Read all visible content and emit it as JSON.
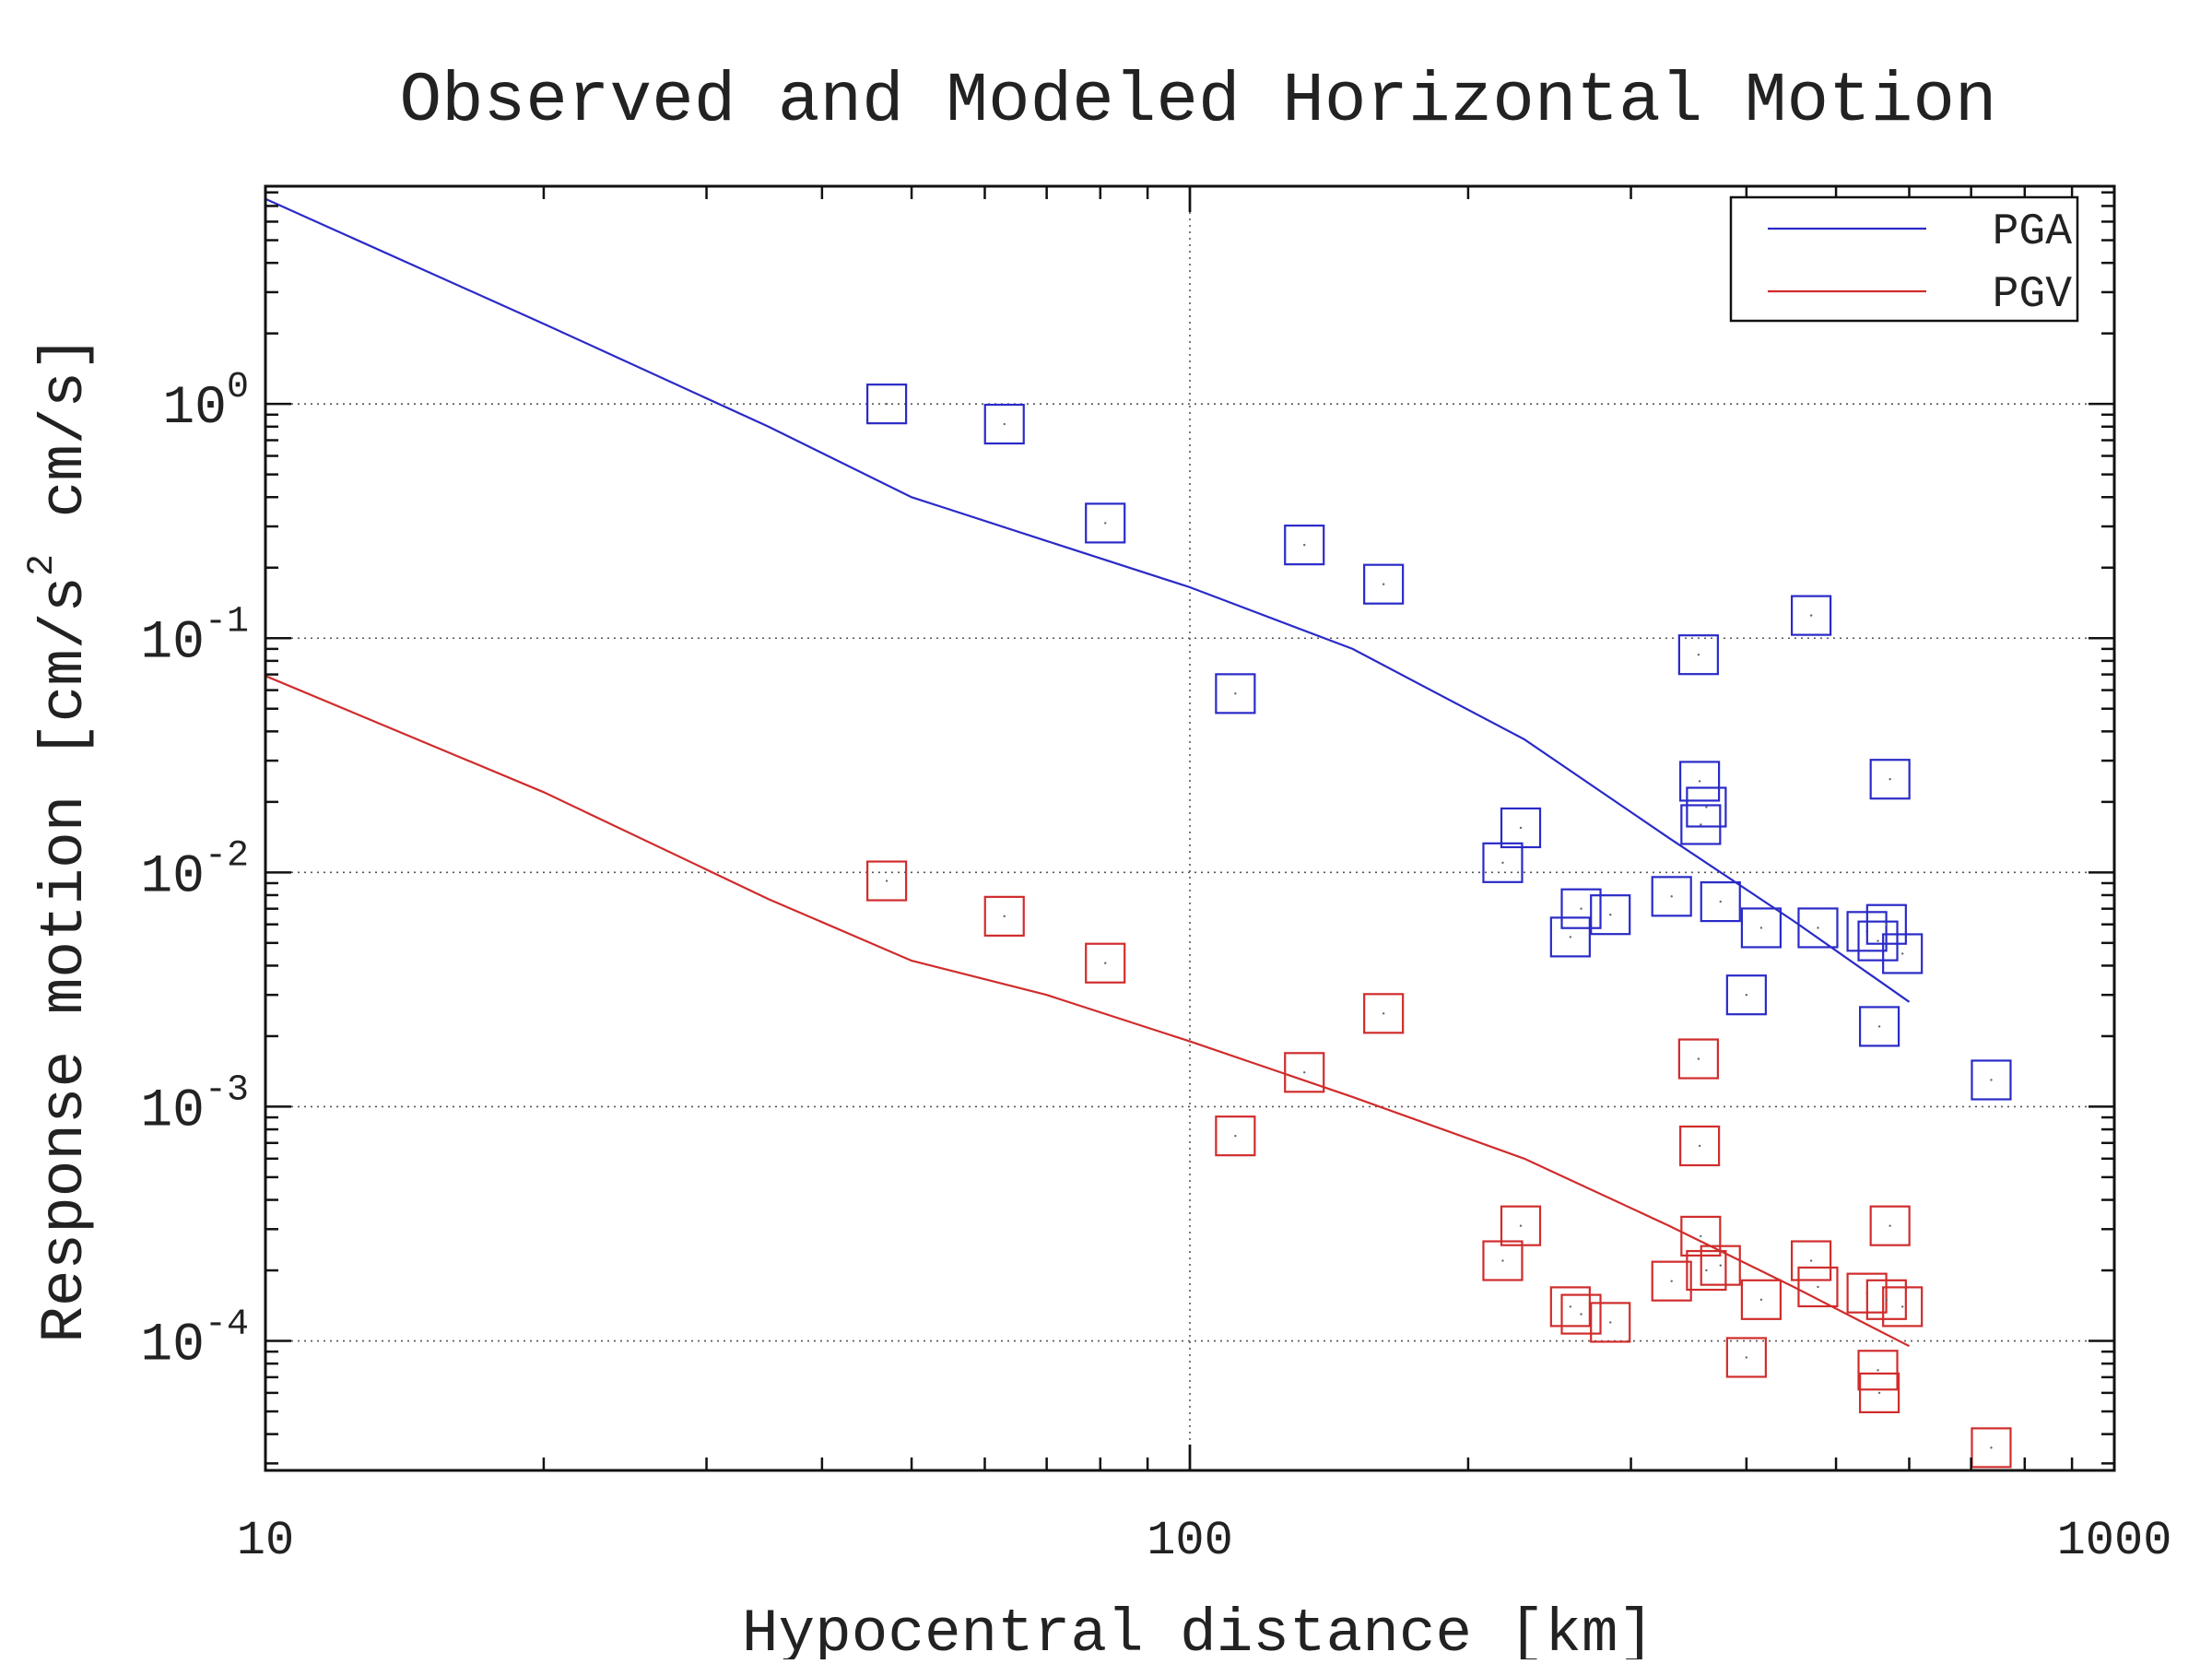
{
  "chart_data": {
    "type": "scatter",
    "title": "Observed and Modeled Horizontal Motion",
    "xlabel": "Hypocentral distance [km]",
    "ylabel": {
      "prefix": "Response motion [cm/s",
      "sup": "2",
      "suffix": " cm/s]"
    },
    "xscale": "log",
    "yscale": "log",
    "xlim": [
      10,
      1000
    ],
    "ylim": [
      2.8e-05,
      8.5
    ],
    "x_ticks": [
      {
        "value": 10,
        "label": "10"
      },
      {
        "value": 100,
        "label": "100"
      },
      {
        "value": 1000,
        "label": "1000"
      }
    ],
    "y_ticks": [
      {
        "value": 1,
        "base": "10",
        "exp": "0"
      },
      {
        "value": 0.1,
        "base": "10",
        "exp": "-1"
      },
      {
        "value": 0.01,
        "base": "10",
        "exp": "-2"
      },
      {
        "value": 0.001,
        "base": "10",
        "exp": "-3"
      },
      {
        "value": 0.0001,
        "base": "10",
        "exp": "-4"
      }
    ],
    "grid": true,
    "legend_position": "top-right",
    "series": [
      {
        "name": "PGA",
        "color": "#2a2ac8",
        "model_curve": {
          "x": [
            10,
            20,
            35,
            50,
            70,
            100,
            150,
            230,
            330,
            450,
            600
          ],
          "y": [
            7.5,
            2.2,
            0.8,
            0.4,
            0.26,
            0.165,
            0.09,
            0.037,
            0.014,
            0.0062,
            0.0028
          ]
        },
        "observed": {
          "x": [
            47,
            63,
            81,
            112,
            133,
            162,
            218,
            228,
            258,
            265,
            285,
            332,
            355,
            356,
            357,
            362,
            375,
            400,
            415,
            470,
            478,
            540,
            555,
            557,
            567,
            572,
            590,
            736
          ],
          "y": [
            1.0,
            0.82,
            0.31,
            0.058,
            0.25,
            0.17,
            0.011,
            0.0155,
            0.0053,
            0.007,
            0.0066,
            0.0079,
            0.085,
            0.0245,
            0.016,
            0.019,
            0.0075,
            0.003,
            0.0058,
            0.125,
            0.0058,
            0.0056,
            0.0051,
            0.0022,
            0.006,
            0.025,
            0.0045,
            0.0013
          ]
        }
      },
      {
        "name": "PGV",
        "color": "#d02c2c",
        "model_curve": {
          "x": [
            10,
            20,
            35,
            50,
            70,
            100,
            150,
            230,
            330,
            450,
            600
          ],
          "y": [
            0.069,
            0.022,
            0.0077,
            0.0042,
            0.003,
            0.0019,
            0.0011,
            0.0006,
            0.00031,
            0.00017,
            9.5e-05
          ]
        },
        "observed": {
          "x": [
            47,
            63,
            81,
            112,
            133,
            162,
            218,
            228,
            258,
            265,
            285,
            332,
            355,
            356,
            357,
            362,
            375,
            400,
            415,
            470,
            478,
            540,
            555,
            557,
            567,
            572,
            590,
            736
          ],
          "y": [
            0.0092,
            0.0065,
            0.0041,
            0.00075,
            0.0014,
            0.0025,
            0.00022,
            0.00031,
            0.00014,
            0.00013,
            0.00012,
            0.00018,
            0.0016,
            0.00068,
            0.00028,
            0.0002,
            0.00021,
            8.5e-05,
            0.00015,
            0.00022,
            0.00017,
            0.00016,
            7.5e-05,
            6e-05,
            0.00015,
            0.00031,
            0.00014,
            3.5e-05
          ]
        }
      }
    ]
  }
}
